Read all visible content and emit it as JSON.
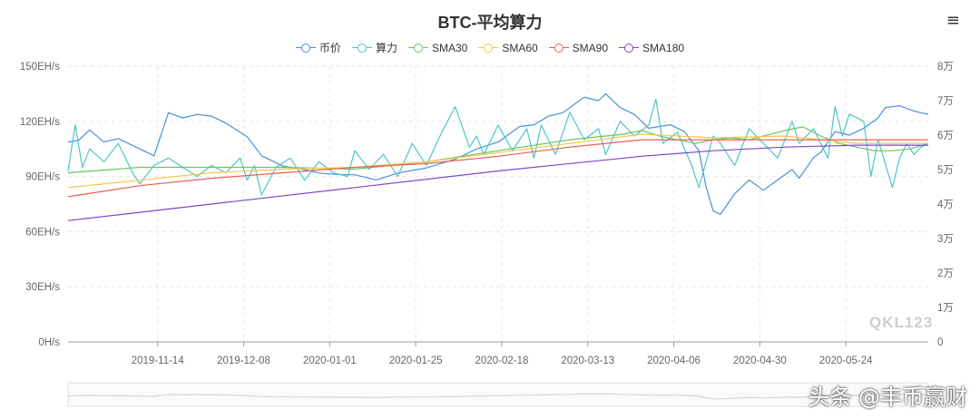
{
  "chart_data": {
    "type": "line",
    "title": "BTC-平均算力",
    "menu_icon": "≡",
    "left_axis": {
      "min": 0,
      "max": 150,
      "ticks": [
        "0H/s",
        "30EH/s",
        "60EH/s",
        "90EH/s",
        "120EH/s",
        "150EH/s"
      ]
    },
    "right_axis": {
      "min": 0,
      "max": 80000,
      "ticks": [
        "0",
        "1万",
        "2万",
        "3万",
        "4万",
        "5万",
        "6万",
        "7万",
        "8万"
      ]
    },
    "x_labels": [
      "2019-11-14",
      "2019-12-08",
      "2020-01-01",
      "2020-01-25",
      "2020-02-18",
      "2020-03-13",
      "2020-04-06",
      "2020-04-30",
      "2020-05-24"
    ],
    "x_range": {
      "start": "2019-10-20",
      "days": 240
    },
    "series": [
      {
        "name": "币价",
        "color": "#4a90d9",
        "axis": "right",
        "points": [
          [
            0,
            58000
          ],
          [
            3,
            58500
          ],
          [
            6,
            61500
          ],
          [
            10,
            58000
          ],
          [
            14,
            59000
          ],
          [
            18,
            57000
          ],
          [
            24,
            54000
          ],
          [
            28,
            66500
          ],
          [
            32,
            65000
          ],
          [
            36,
            66000
          ],
          [
            40,
            65500
          ],
          [
            44,
            63500
          ],
          [
            50,
            59500
          ],
          [
            54,
            54000
          ],
          [
            60,
            51000
          ],
          [
            66,
            50000
          ],
          [
            70,
            49000
          ],
          [
            76,
            48500
          ],
          [
            80,
            48500
          ],
          [
            86,
            47000
          ],
          [
            92,
            49000
          ],
          [
            100,
            50500
          ],
          [
            108,
            53000
          ],
          [
            114,
            56000
          ],
          [
            120,
            58000
          ],
          [
            126,
            62500
          ],
          [
            130,
            63000
          ],
          [
            134,
            65500
          ],
          [
            138,
            66500
          ],
          [
            144,
            71000
          ],
          [
            148,
            70000
          ],
          [
            150,
            72000
          ],
          [
            154,
            68000
          ],
          [
            158,
            66000
          ],
          [
            162,
            62000
          ],
          [
            168,
            63000
          ],
          [
            172,
            61000
          ],
          [
            176,
            55500
          ],
          [
            178,
            45000
          ],
          [
            180,
            38000
          ],
          [
            182,
            37000
          ],
          [
            186,
            43000
          ],
          [
            190,
            47000
          ],
          [
            194,
            44000
          ],
          [
            198,
            47000
          ],
          [
            202,
            50000
          ],
          [
            204,
            47500
          ],
          [
            208,
            53500
          ],
          [
            210,
            55000
          ],
          [
            214,
            61000
          ],
          [
            218,
            60000
          ],
          [
            222,
            62000
          ],
          [
            226,
            65000
          ],
          [
            228,
            68000
          ],
          [
            232,
            68500
          ],
          [
            236,
            67000
          ],
          [
            240,
            66000
          ]
        ]
      },
      {
        "name": "算力",
        "color": "#4fc6c6",
        "axis": "left",
        "points": [
          [
            0,
            93
          ],
          [
            2,
            118
          ],
          [
            4,
            95
          ],
          [
            6,
            105
          ],
          [
            10,
            98
          ],
          [
            14,
            108
          ],
          [
            18,
            92
          ],
          [
            20,
            86
          ],
          [
            24,
            96
          ],
          [
            28,
            100
          ],
          [
            32,
            95
          ],
          [
            36,
            90
          ],
          [
            40,
            96
          ],
          [
            44,
            92
          ],
          [
            48,
            100
          ],
          [
            50,
            88
          ],
          [
            52,
            96
          ],
          [
            54,
            80
          ],
          [
            58,
            95
          ],
          [
            62,
            100
          ],
          [
            66,
            88
          ],
          [
            70,
            98
          ],
          [
            74,
            92
          ],
          [
            78,
            90
          ],
          [
            80,
            104
          ],
          [
            84,
            94
          ],
          [
            88,
            102
          ],
          [
            92,
            90
          ],
          [
            96,
            108
          ],
          [
            100,
            96
          ],
          [
            104,
            113
          ],
          [
            108,
            128
          ],
          [
            112,
            106
          ],
          [
            114,
            112
          ],
          [
            116,
            102
          ],
          [
            120,
            118
          ],
          [
            124,
            104
          ],
          [
            128,
            116
          ],
          [
            130,
            100
          ],
          [
            132,
            118
          ],
          [
            136,
            102
          ],
          [
            140,
            125
          ],
          [
            144,
            110
          ],
          [
            148,
            116
          ],
          [
            150,
            102
          ],
          [
            154,
            120
          ],
          [
            158,
            112
          ],
          [
            162,
            118
          ],
          [
            164,
            132
          ],
          [
            166,
            108
          ],
          [
            170,
            114
          ],
          [
            174,
            96
          ],
          [
            176,
            84
          ],
          [
            180,
            112
          ],
          [
            182,
            108
          ],
          [
            186,
            96
          ],
          [
            190,
            116
          ],
          [
            194,
            108
          ],
          [
            198,
            100
          ],
          [
            202,
            120
          ],
          [
            204,
            108
          ],
          [
            208,
            116
          ],
          [
            212,
            100
          ],
          [
            214,
            128
          ],
          [
            216,
            112
          ],
          [
            218,
            124
          ],
          [
            222,
            120
          ],
          [
            224,
            90
          ],
          [
            226,
            110
          ],
          [
            230,
            84
          ],
          [
            232,
            100
          ],
          [
            234,
            108
          ],
          [
            236,
            102
          ],
          [
            238,
            106
          ],
          [
            240,
            108
          ]
        ]
      },
      {
        "name": "SMA30",
        "color": "#6cc36c",
        "axis": "left",
        "points": [
          [
            0,
            92
          ],
          [
            20,
            95
          ],
          [
            40,
            95
          ],
          [
            60,
            95
          ],
          [
            80,
            94
          ],
          [
            100,
            98
          ],
          [
            120,
            104
          ],
          [
            140,
            110
          ],
          [
            150,
            112
          ],
          [
            155,
            113
          ],
          [
            160,
            115
          ],
          [
            165,
            112
          ],
          [
            170,
            110
          ],
          [
            175,
            108
          ],
          [
            180,
            110
          ],
          [
            185,
            111
          ],
          [
            190,
            110
          ],
          [
            200,
            115
          ],
          [
            205,
            117
          ],
          [
            210,
            112
          ],
          [
            215,
            108
          ],
          [
            220,
            106
          ],
          [
            225,
            104
          ],
          [
            230,
            104
          ],
          [
            235,
            105
          ],
          [
            240,
            108
          ]
        ]
      },
      {
        "name": "SMA60",
        "color": "#f2c94c",
        "axis": "left",
        "points": [
          [
            0,
            84
          ],
          [
            20,
            88
          ],
          [
            40,
            92
          ],
          [
            60,
            94
          ],
          [
            80,
            95
          ],
          [
            100,
            98
          ],
          [
            120,
            103
          ],
          [
            140,
            108
          ],
          [
            160,
            113
          ],
          [
            180,
            111
          ],
          [
            200,
            112
          ],
          [
            210,
            110
          ],
          [
            220,
            108
          ],
          [
            240,
            108
          ]
        ]
      },
      {
        "name": "SMA90",
        "color": "#e8605a",
        "axis": "left",
        "points": [
          [
            0,
            79
          ],
          [
            20,
            85
          ],
          [
            40,
            89
          ],
          [
            60,
            92
          ],
          [
            80,
            95
          ],
          [
            100,
            97
          ],
          [
            120,
            101
          ],
          [
            140,
            106
          ],
          [
            160,
            110
          ],
          [
            180,
            110
          ],
          [
            200,
            110
          ],
          [
            220,
            110
          ],
          [
            240,
            110
          ]
        ]
      },
      {
        "name": "SMA180",
        "color": "#7a49c9",
        "axis": "left",
        "points": [
          [
            0,
            66
          ],
          [
            40,
            75
          ],
          [
            80,
            84
          ],
          [
            120,
            93
          ],
          [
            160,
            101
          ],
          [
            180,
            104
          ],
          [
            200,
            106
          ],
          [
            220,
            107
          ],
          [
            240,
            107
          ]
        ]
      }
    ],
    "grid": true,
    "legend_position": "top-center"
  },
  "watermark_logo": "QKL123",
  "watermark_source": "头条 @丰币赢财"
}
